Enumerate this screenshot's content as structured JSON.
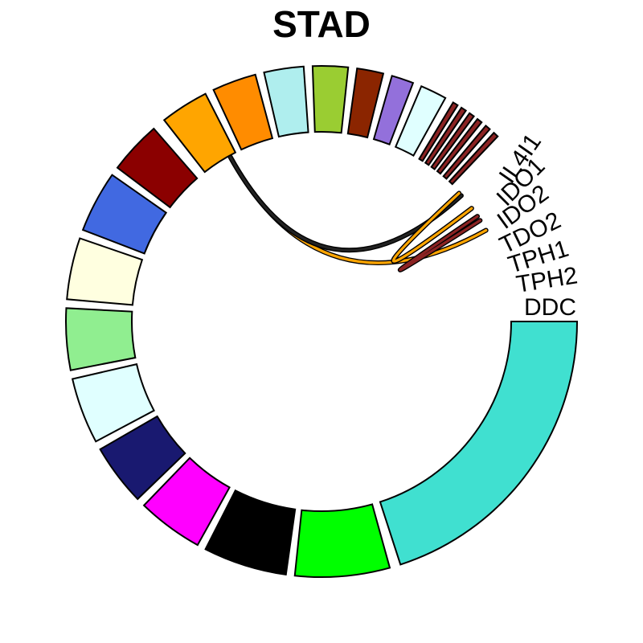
{
  "title": "STAD",
  "labels": [
    "IL4I1",
    "IDO1",
    "IDO2",
    "TDO2",
    "TPH1",
    "TPH2",
    "DDC"
  ],
  "sectors": [
    {
      "name": "DDC",
      "start": 0,
      "end": 72,
      "color": "#40E0D0"
    },
    {
      "name": "",
      "start": 74.5,
      "end": 96,
      "color": "#00FF00"
    },
    {
      "name": "",
      "start": 98,
      "end": 117,
      "color": "#000000"
    },
    {
      "name": "",
      "start": 119,
      "end": 134,
      "color": "#FF00FF"
    },
    {
      "name": "",
      "start": 136,
      "end": 150,
      "color": "#191970"
    },
    {
      "name": "",
      "start": 152,
      "end": 167,
      "color": "#E0FFFF"
    },
    {
      "name": "",
      "start": 169,
      "end": 183,
      "color": "#90EE90"
    },
    {
      "name": "",
      "start": 185,
      "end": 199,
      "color": "#FFFFE0"
    },
    {
      "name": "",
      "start": 201,
      "end": 215,
      "color": "#4169E1"
    },
    {
      "name": "",
      "start": 217,
      "end": 229,
      "color": "#8B0000"
    },
    {
      "name": "",
      "start": 232,
      "end": 243,
      "color": "#FFA500"
    },
    {
      "name": "",
      "start": 245,
      "end": 255,
      "color": "#FF8C00"
    },
    {
      "name": "",
      "start": 257,
      "end": 266,
      "color": "#AFEEEE"
    },
    {
      "name": "",
      "start": 268,
      "end": 276,
      "color": "#9ACD32"
    },
    {
      "name": "",
      "start": 278,
      "end": 284,
      "color": "#8B2500"
    },
    {
      "name": "",
      "start": 286,
      "end": 291,
      "color": "#9370DB"
    },
    {
      "name": "",
      "start": 293,
      "end": 299,
      "color": "#E0FFFF"
    },
    {
      "name": "IL4I1",
      "start": 301,
      "end": 302.2,
      "color": "#8B2323"
    },
    {
      "name": "IDO1",
      "start": 303.2,
      "end": 304.4,
      "color": "#8B2323"
    },
    {
      "name": "IDO2",
      "start": 305.4,
      "end": 306.6,
      "color": "#8B2323"
    },
    {
      "name": "TDO2",
      "start": 307.6,
      "end": 308.8,
      "color": "#8B2323"
    },
    {
      "name": "TPH1",
      "start": 310.0,
      "end": 311.2,
      "color": "#8B2323"
    },
    {
      "name": "TPH2",
      "start": 312.4,
      "end": 313.6,
      "color": "#8B2323"
    }
  ],
  "links": [
    {
      "from": 241,
      "to": 331,
      "color": "#FFA500"
    },
    {
      "from": 241,
      "to": 318,
      "color": "#222222"
    },
    {
      "from": 317,
      "to": 323,
      "color": "#FFA500"
    },
    {
      "from": 326,
      "to": 327.5,
      "color": "#8B2323"
    }
  ]
}
